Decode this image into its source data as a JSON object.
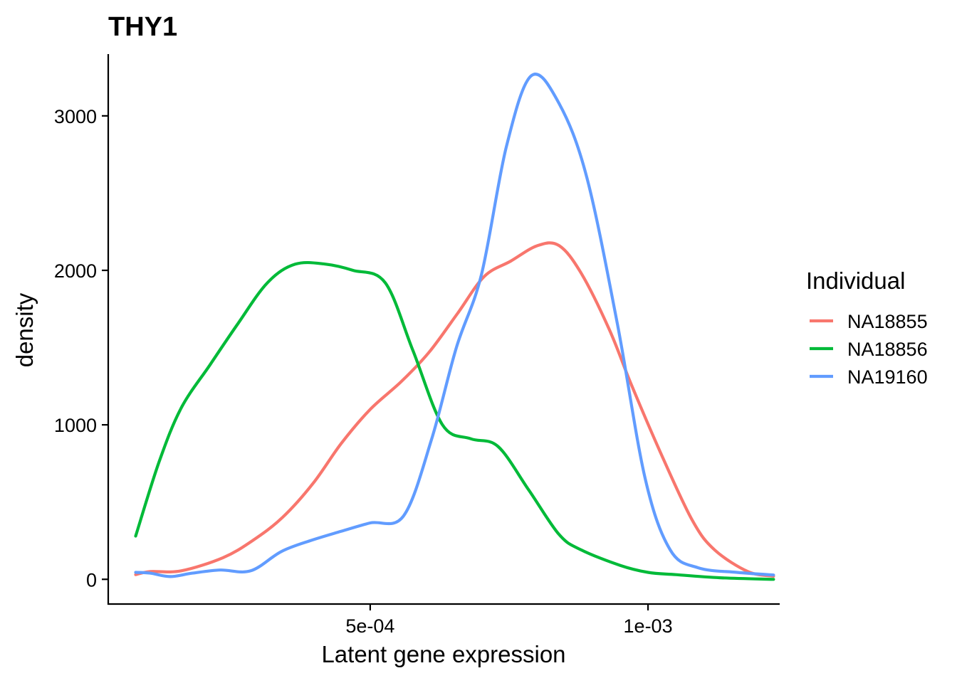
{
  "chart_data": {
    "type": "line",
    "title": "THY1",
    "xlabel": "Latent gene expression",
    "ylabel": "density",
    "xlim": [
      2.85e-05,
      0.001237
    ],
    "ylim": [
      -160,
      3400
    ],
    "x_ticks": [
      {
        "value": 0.0005,
        "label": "5e-04"
      },
      {
        "value": 0.001,
        "label": "1e-03"
      }
    ],
    "y_ticks": [
      {
        "value": 0,
        "label": "0"
      },
      {
        "value": 1000,
        "label": "1000"
      },
      {
        "value": 2000,
        "label": "2000"
      },
      {
        "value": 3000,
        "label": "3000"
      }
    ],
    "grid": false,
    "legend": {
      "title": "Individual",
      "position": "right"
    },
    "series": [
      {
        "name": "NA18855",
        "color": "#F8766D",
        "points": [
          [
            7.79e-05,
            30
          ],
          [
            0.000104,
            50
          ],
          [
            0.00016,
            55
          ],
          [
            0.000235,
            140
          ],
          [
            0.000288,
            250
          ],
          [
            0.000342,
            400
          ],
          [
            0.000397,
            620
          ],
          [
            0.000448,
            880
          ],
          [
            0.0005,
            1100
          ],
          [
            0.000556,
            1280
          ],
          [
            0.000606,
            1470
          ],
          [
            0.000657,
            1720
          ],
          [
            0.000705,
            1960
          ],
          [
            0.000753,
            2060
          ],
          [
            0.000801,
            2160
          ],
          [
            0.00084,
            2160
          ],
          [
            0.00088,
            1980
          ],
          [
            0.00093,
            1620
          ],
          [
            0.00097,
            1260
          ],
          [
            0.001025,
            800
          ],
          [
            0.00108,
            380
          ],
          [
            0.00112,
            190
          ],
          [
            0.00118,
            50
          ],
          [
            0.001226,
            20
          ]
        ]
      },
      {
        "name": "NA18856",
        "color": "#00BA38",
        "points": [
          [
            7.79e-05,
            280
          ],
          [
            0.00012,
            760
          ],
          [
            0.00016,
            1110
          ],
          [
            0.000212,
            1390
          ],
          [
            0.000261,
            1650
          ],
          [
            0.000315,
            1920
          ],
          [
            0.000365,
            2040
          ],
          [
            0.00042,
            2040
          ],
          [
            0.000469,
            2000
          ],
          [
            0.000527,
            1920
          ],
          [
            0.000577,
            1480
          ],
          [
            0.00063,
            1000
          ],
          [
            0.000681,
            910
          ],
          [
            0.00073,
            860
          ],
          [
            0.000785,
            580
          ],
          [
            0.00084,
            290
          ],
          [
            0.00088,
            190
          ],
          [
            0.00095,
            90
          ],
          [
            0.001,
            45
          ],
          [
            0.00105,
            30
          ],
          [
            0.00113,
            10
          ],
          [
            0.001226,
            0
          ]
        ]
      },
      {
        "name": "NA19160",
        "color": "#619CFF",
        "points": [
          [
            7.79e-05,
            45
          ],
          [
            0.000104,
            40
          ],
          [
            0.00014,
            18
          ],
          [
            0.00018,
            40
          ],
          [
            0.00023,
            60
          ],
          [
            0.000285,
            55
          ],
          [
            0.00034,
            180
          ],
          [
            0.000392,
            250
          ],
          [
            0.000447,
            310
          ],
          [
            0.0005,
            365
          ],
          [
            0.00056,
            410
          ],
          [
            0.00061,
            900
          ],
          [
            0.000655,
            1500
          ],
          [
            0.0007,
            1970
          ],
          [
            0.000745,
            2800
          ],
          [
            0.00079,
            3260
          ],
          [
            0.00084,
            3080
          ],
          [
            0.00089,
            2600
          ],
          [
            0.000945,
            1650
          ],
          [
            0.000995,
            650
          ],
          [
            0.00104,
            190
          ],
          [
            0.00109,
            75
          ],
          [
            0.00116,
            45
          ],
          [
            0.001226,
            28
          ]
        ]
      }
    ]
  }
}
